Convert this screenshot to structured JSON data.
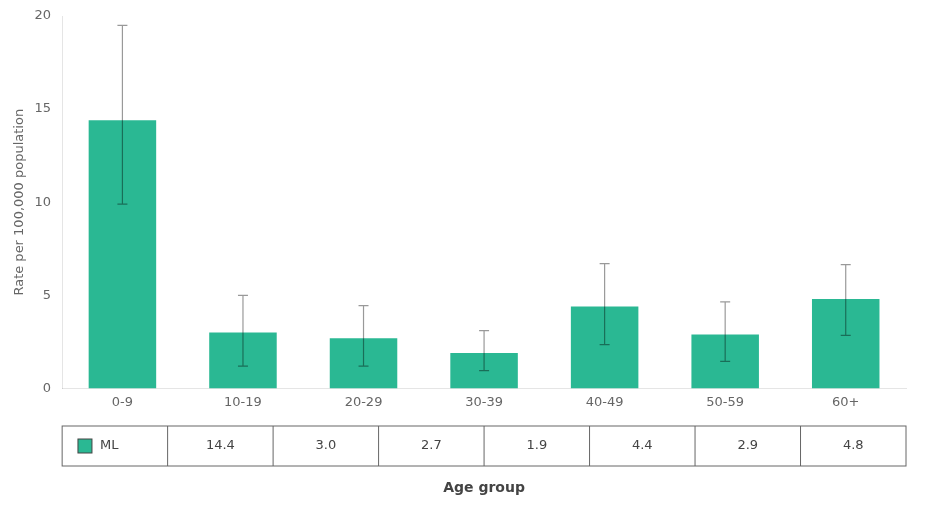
{
  "chart_data": {
    "type": "bar",
    "xlabel": "Age group",
    "ylabel": "Rate per 100,000 population",
    "categories": [
      "0-9",
      "10-19",
      "20-29",
      "30-39",
      "40-49",
      "50-59",
      "60+"
    ],
    "series": [
      {
        "name": "ML",
        "color": "#2ab893",
        "values": [
          14.4,
          3.0,
          2.7,
          1.9,
          4.4,
          2.9,
          4.8
        ],
        "value_labels": [
          "14.4",
          "3.0",
          "2.7",
          "1.9",
          "4.4",
          "2.9",
          "4.8"
        ],
        "error_lower": [
          4.5,
          1.8,
          1.5,
          0.95,
          2.05,
          1.45,
          1.95
        ],
        "error_upper": [
          5.1,
          2.0,
          1.75,
          1.2,
          2.3,
          1.75,
          1.85
        ]
      }
    ],
    "ylim": [
      0,
      20
    ],
    "yticks": [
      0,
      5,
      10,
      15,
      20
    ],
    "grid": false,
    "data_labels": true
  }
}
